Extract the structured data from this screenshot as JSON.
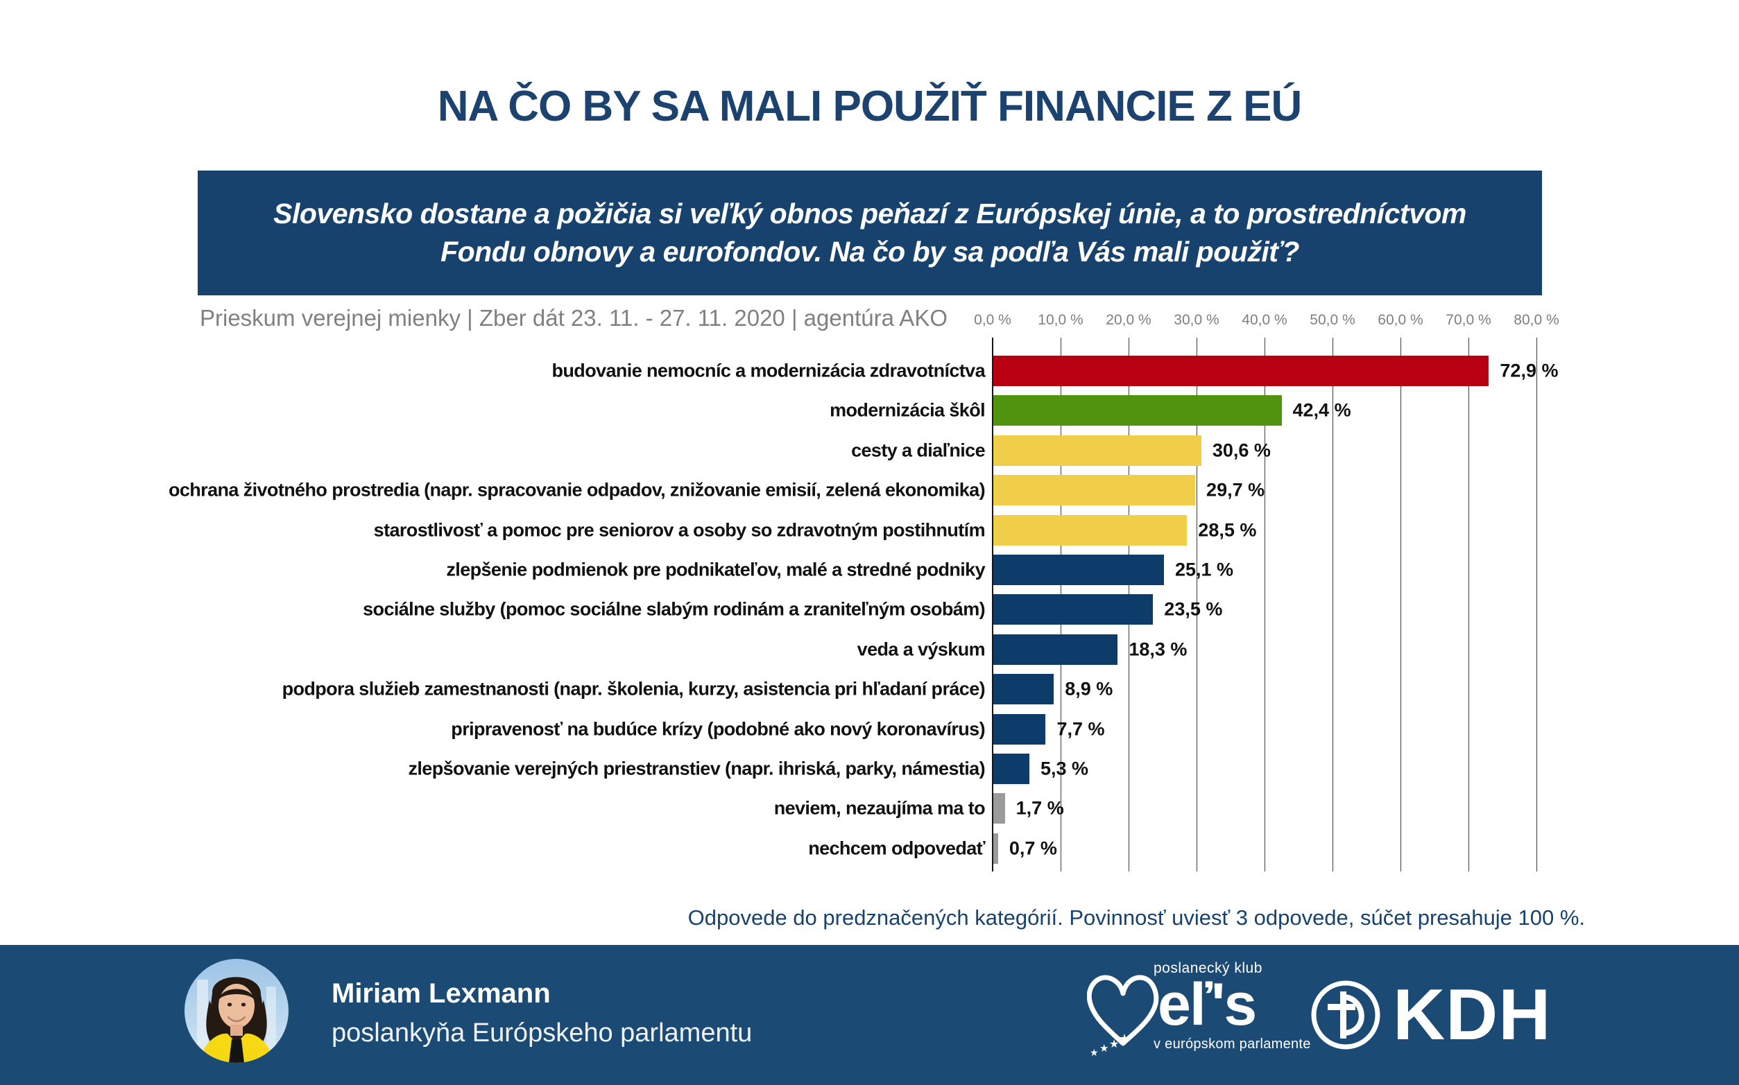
{
  "title": "NA ČO BY SA MALI POUŽIŤ FINANCIE Z EÚ",
  "question_box": {
    "line1": "Slovensko dostane a požičia si veľký obnos peňazí z Európskej únie, a to prostredníctvom",
    "line2": "Fondu obnovy a eurofondov. Na čo by sa podľa Vás mali použiť?"
  },
  "source_line": "Prieskum verejnej mienky | Zber dát 23. 11. - 27. 11. 2020 | agentúra AKO",
  "chart_data": {
    "type": "bar",
    "orientation": "horizontal",
    "title": "",
    "xlabel": "",
    "ylabel": "",
    "xlim": [
      0,
      80
    ],
    "grid": true,
    "x_tick_labels": [
      "0,0 %",
      "10,0 %",
      "20,0 %",
      "30,0 %",
      "40,0 %",
      "50,0 %",
      "60,0 %",
      "70,0 %",
      "80,0 %"
    ],
    "categories": [
      "budovanie nemocníc a modernizácia zdravotníctva",
      "modernizácia škôl",
      "cesty a diaľnice",
      "ochrana životného prostredia (napr. spracovanie odpadov, znižovanie emisií, zelená ekonomika)",
      "starostlivosť a pomoc pre seniorov a osoby so zdravotným postihnutím",
      "zlepšenie podmienok pre podnikateľov, malé a stredné podniky",
      "sociálne služby (pomoc sociálne slabým rodinám a zraniteľným osobám)",
      "veda a výskum",
      "podpora služieb zamestnanosti (napr. školenia, kurzy, asistencia pri hľadaní práce)",
      "pripravenosť na budúce krízy (podobné ako nový koronavírus)",
      "zlepšovanie verejných priestranstiev (napr. ihriská, parky, námestia)",
      "neviem, nezaujíma ma to",
      "nechcem odpovedať"
    ],
    "values": [
      72.9,
      42.4,
      30.6,
      29.7,
      28.5,
      25.1,
      23.5,
      18.3,
      8.9,
      7.7,
      5.3,
      1.7,
      0.7
    ],
    "value_labels": [
      "72,9 %",
      "42,4 %",
      "30,6 %",
      "29,7 %",
      "28,5 %",
      "25,1 %",
      "23,5 %",
      "18,3 %",
      "8,9 %",
      "7,7 %",
      "5,3 %",
      "1,7 %",
      "0,7 %"
    ],
    "bar_colors": [
      "#b90012",
      "#4f930f",
      "#f0ce4a",
      "#f0ce4a",
      "#f0ce4a",
      "#0d3c6a",
      "#0d3c6a",
      "#0d3c6a",
      "#0d3c6a",
      "#0d3c6a",
      "#0d3c6a",
      "#9b9b9b",
      "#9b9b9b"
    ]
  },
  "footnote": "Odpovede do predznačených kategórií. Povinnosť uviesť 3 odpovede, súčet presahuje 100 %.",
  "footer": {
    "name": "Miriam Lexmann",
    "role": "poslankyňa Európskeho parlamentu",
    "epp_logo": {
      "top": "poslanecký klub",
      "main": "eľ's",
      "bottom": "v európskom parlamente"
    },
    "kdh_logo": {
      "text": "KDH"
    }
  },
  "colors": {
    "accent_navy": "#17426e",
    "footer_navy": "#1b4a75",
    "title_navy": "#1c4370",
    "bar_red": "#b90012",
    "bar_green": "#4f930f",
    "bar_yellow": "#f0ce4a",
    "bar_navy": "#0d3c6a",
    "bar_gray": "#9b9b9b",
    "text_gray": "#808080"
  }
}
